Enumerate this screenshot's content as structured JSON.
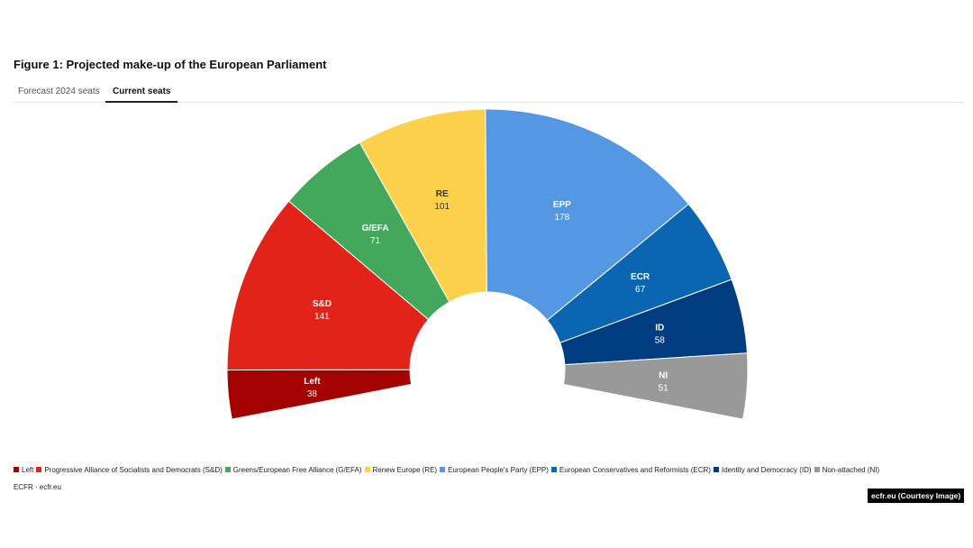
{
  "figure": {
    "title": "Figure 1: Projected make-up of the European Parliament",
    "tabs": [
      {
        "label": "Forecast 2024 seats",
        "active": false
      },
      {
        "label": "Current seats",
        "active": true
      }
    ],
    "source": "ECFR · ecfr.eu",
    "credit": "ecfr.eu (Courtesy Image)"
  },
  "chart_data": {
    "type": "pie",
    "variant": "semicircle-donut",
    "categories": [
      "Left",
      "S&D",
      "G/EFA",
      "RE",
      "EPP",
      "ECR",
      "ID",
      "NI"
    ],
    "values": [
      38,
      141,
      71,
      101,
      178,
      67,
      58,
      51
    ],
    "colors": [
      "#a30000",
      "#e2231a",
      "#43a85b",
      "#fdd14b",
      "#5497e2",
      "#0a66b1",
      "#003d80",
      "#999999"
    ],
    "label_colors": [
      "#ffffff",
      "#ffffff",
      "#ffffff",
      "#333333",
      "#ffffff",
      "#ffffff",
      "#ffffff",
      "#ffffff"
    ],
    "legend": [
      "Left",
      "Progressive Alliance of Socialists and Democrats (S&D)",
      "Greens/European Free Alliance (G/EFA)",
      "Renew Europe (RE)",
      "European People's Party (EPP)",
      "European Conservatives and Reformists (ECR)",
      "Identity and Democracy (ID)",
      "Non-attached (NI)"
    ],
    "legend_position": "bottom-left"
  }
}
